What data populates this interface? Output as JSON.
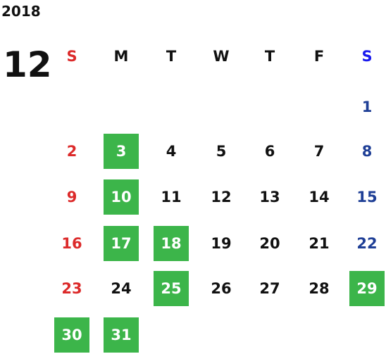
{
  "year": "2018",
  "month": "12",
  "weekdays": [
    "S",
    "M",
    "T",
    "W",
    "T",
    "F",
    "S"
  ],
  "weeks": [
    [
      null,
      null,
      null,
      null,
      null,
      null,
      {
        "day": "1",
        "highlighted": false
      }
    ],
    [
      {
        "day": "2",
        "highlighted": false
      },
      {
        "day": "3",
        "highlighted": true
      },
      {
        "day": "4",
        "highlighted": false
      },
      {
        "day": "5",
        "highlighted": false
      },
      {
        "day": "6",
        "highlighted": false
      },
      {
        "day": "7",
        "highlighted": false
      },
      {
        "day": "8",
        "highlighted": false
      }
    ],
    [
      {
        "day": "9",
        "highlighted": false
      },
      {
        "day": "10",
        "highlighted": true
      },
      {
        "day": "11",
        "highlighted": false
      },
      {
        "day": "12",
        "highlighted": false
      },
      {
        "day": "13",
        "highlighted": false
      },
      {
        "day": "14",
        "highlighted": false
      },
      {
        "day": "15",
        "highlighted": false
      }
    ],
    [
      {
        "day": "16",
        "highlighted": false
      },
      {
        "day": "17",
        "highlighted": true
      },
      {
        "day": "18",
        "highlighted": true
      },
      {
        "day": "19",
        "highlighted": false
      },
      {
        "day": "20",
        "highlighted": false
      },
      {
        "day": "21",
        "highlighted": false
      },
      {
        "day": "22",
        "highlighted": false
      }
    ],
    [
      {
        "day": "23",
        "highlighted": false
      },
      {
        "day": "24",
        "highlighted": false
      },
      {
        "day": "25",
        "highlighted": true
      },
      {
        "day": "26",
        "highlighted": false
      },
      {
        "day": "27",
        "highlighted": false
      },
      {
        "day": "28",
        "highlighted": false
      },
      {
        "day": "29",
        "highlighted": true
      }
    ],
    [
      {
        "day": "30",
        "highlighted": true
      },
      {
        "day": "31",
        "highlighted": true
      },
      null,
      null,
      null,
      null,
      null
    ]
  ]
}
